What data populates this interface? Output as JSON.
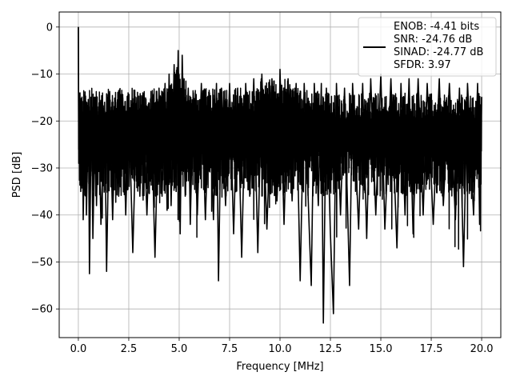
{
  "chart_data": {
    "type": "line",
    "title": "",
    "xlabel": "Frequency [MHz]",
    "ylabel": "PSD [dB]",
    "xlim": [
      -0.95,
      20.95
    ],
    "ylim": [
      -66.1,
      3.2
    ],
    "xticks": [
      0.0,
      2.5,
      5.0,
      7.5,
      10.0,
      12.5,
      15.0,
      17.5,
      20.0
    ],
    "xtick_labels": [
      "0.0",
      "2.5",
      "5.0",
      "7.5",
      "10.0",
      "12.5",
      "15.0",
      "17.5",
      "20.0"
    ],
    "yticks": [
      0,
      -10,
      -20,
      -30,
      -40,
      -50,
      -60
    ],
    "ytick_labels": [
      "0",
      "−10",
      "−20",
      "−30",
      "−40",
      "−50",
      "−60"
    ],
    "grid": true,
    "legend_position": "top-right",
    "series": [
      {
        "color": "#000000",
        "description": "dense noisy power spectral density trace from 0 to 20 MHz",
        "x_range": [
          0.0,
          20.0
        ],
        "peak": {
          "x": 0.0,
          "y": 0.0
        },
        "typical_upper": -13,
        "typical_lower": -36,
        "points": [
          [
            0.0,
            0.0
          ],
          [
            0.02,
            -29
          ],
          [
            0.08,
            -14
          ],
          [
            0.12,
            -35
          ],
          [
            0.2,
            -16
          ],
          [
            0.24,
            -41
          ],
          [
            0.35,
            -15
          ],
          [
            0.4,
            -40
          ],
          [
            0.5,
            -17
          ],
          [
            0.55,
            -52.5
          ],
          [
            0.65,
            -16
          ],
          [
            0.72,
            -45
          ],
          [
            0.85,
            -15
          ],
          [
            0.9,
            -38
          ],
          [
            1.0,
            -17
          ],
          [
            1.12,
            -42
          ],
          [
            1.3,
            -16
          ],
          [
            1.4,
            -52
          ],
          [
            1.55,
            -14
          ],
          [
            1.7,
            -41
          ],
          [
            1.85,
            -16
          ],
          [
            2.0,
            -36
          ],
          [
            2.2,
            -15
          ],
          [
            2.35,
            -40
          ],
          [
            2.5,
            -16
          ],
          [
            2.7,
            -48
          ],
          [
            2.9,
            -15
          ],
          [
            3.05,
            -36
          ],
          [
            3.2,
            -14
          ],
          [
            3.4,
            -40
          ],
          [
            3.6,
            -15
          ],
          [
            3.8,
            -49
          ],
          [
            4.0,
            -13
          ],
          [
            4.15,
            -36
          ],
          [
            4.3,
            -12
          ],
          [
            4.4,
            -39
          ],
          [
            4.5,
            -10
          ],
          [
            4.6,
            -38
          ],
          [
            4.75,
            -8
          ],
          [
            4.85,
            -35
          ],
          [
            4.95,
            -5
          ],
          [
            5.05,
            -44
          ],
          [
            5.15,
            -6
          ],
          [
            5.3,
            -36
          ],
          [
            5.45,
            -13
          ],
          [
            5.55,
            -42
          ],
          [
            5.7,
            -14
          ],
          [
            5.9,
            -40
          ],
          [
            6.1,
            -12
          ],
          [
            6.3,
            -41
          ],
          [
            6.5,
            -14
          ],
          [
            6.7,
            -41
          ],
          [
            6.85,
            -12
          ],
          [
            6.95,
            -54
          ],
          [
            7.1,
            -13
          ],
          [
            7.3,
            -38
          ],
          [
            7.5,
            -12
          ],
          [
            7.7,
            -44
          ],
          [
            7.9,
            -13
          ],
          [
            8.1,
            -49
          ],
          [
            8.3,
            -12
          ],
          [
            8.5,
            -36
          ],
          [
            8.7,
            -11
          ],
          [
            8.9,
            -48
          ],
          [
            9.1,
            -10
          ],
          [
            9.35,
            -43
          ],
          [
            9.6,
            -11
          ],
          [
            9.85,
            -37
          ],
          [
            9.95,
            -25
          ],
          [
            10.0,
            -9
          ],
          [
            10.2,
            -42
          ],
          [
            10.4,
            -11
          ],
          [
            10.6,
            -37
          ],
          [
            10.8,
            -12
          ],
          [
            11.0,
            -54
          ],
          [
            11.2,
            -12
          ],
          [
            11.45,
            -43
          ],
          [
            11.55,
            -55
          ],
          [
            11.7,
            -12
          ],
          [
            11.9,
            -38
          ],
          [
            12.05,
            -12
          ],
          [
            12.15,
            -63
          ],
          [
            12.3,
            -13
          ],
          [
            12.5,
            -44
          ],
          [
            12.65,
            -61
          ],
          [
            12.8,
            -12
          ],
          [
            13.0,
            -40
          ],
          [
            13.2,
            -13
          ],
          [
            13.45,
            -55
          ],
          [
            13.6,
            -12
          ],
          [
            13.9,
            -43
          ],
          [
            14.1,
            -12
          ],
          [
            14.3,
            -45
          ],
          [
            14.5,
            -11
          ],
          [
            14.75,
            -40
          ],
          [
            15.0,
            -10
          ],
          [
            15.2,
            -43
          ],
          [
            15.5,
            -11
          ],
          [
            15.8,
            -47
          ],
          [
            16.0,
            -12
          ],
          [
            16.2,
            -40
          ],
          [
            16.4,
            -11
          ],
          [
            16.6,
            -44
          ],
          [
            16.85,
            -11
          ],
          [
            17.1,
            -40
          ],
          [
            17.3,
            -12
          ],
          [
            17.6,
            -42
          ],
          [
            17.9,
            -11
          ],
          [
            18.1,
            -38
          ],
          [
            18.4,
            -12
          ],
          [
            18.7,
            -41
          ],
          [
            18.9,
            -13
          ],
          [
            19.1,
            -51
          ],
          [
            19.3,
            -12
          ],
          [
            19.6,
            -40
          ],
          [
            19.8,
            -12
          ],
          [
            19.9,
            -42
          ],
          [
            20.0,
            -15
          ]
        ]
      }
    ],
    "legend": {
      "entries": [
        "ENOB: -4.41 bits",
        "SNR: -24.76 dB",
        "SINAD: -24.77 dB",
        "SFDR: 3.97"
      ]
    }
  }
}
